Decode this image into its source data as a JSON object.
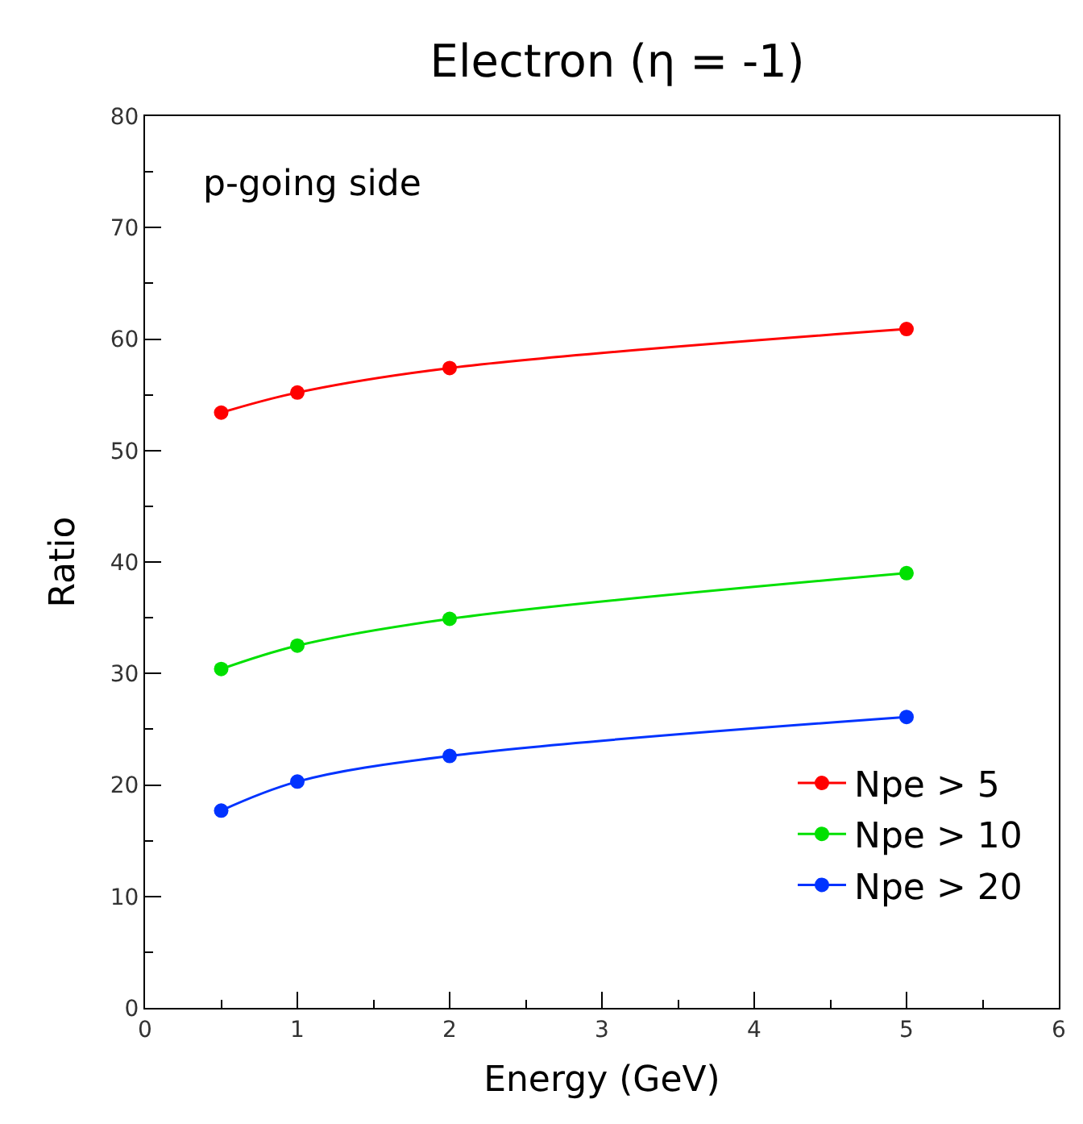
{
  "chart_data": {
    "type": "line",
    "title": "Electron (η = -1)",
    "xlabel": "Energy (GeV)",
    "ylabel": "Ratio",
    "annotations": [
      "p-going side"
    ],
    "x": [
      0.5,
      1,
      2,
      5
    ],
    "series": [
      {
        "name": "Npe > 5",
        "color": "#ff0000",
        "values": [
          53.4,
          55.2,
          57.4,
          60.9
        ]
      },
      {
        "name": "Npe > 10",
        "color": "#00e000",
        "values": [
          30.4,
          32.5,
          34.9,
          39.0
        ]
      },
      {
        "name": "Npe > 20",
        "color": "#0033ff",
        "values": [
          17.7,
          20.3,
          22.6,
          26.1
        ]
      }
    ],
    "xlim": [
      0,
      6
    ],
    "xticks": [
      0,
      1,
      2,
      3,
      4,
      5,
      6
    ],
    "ylim": [
      0,
      80
    ],
    "yticks": [
      0,
      10,
      20,
      30,
      40,
      50,
      60,
      70,
      80
    ],
    "legend": "bottom right",
    "marker": "circle",
    "line_style": "solid"
  }
}
